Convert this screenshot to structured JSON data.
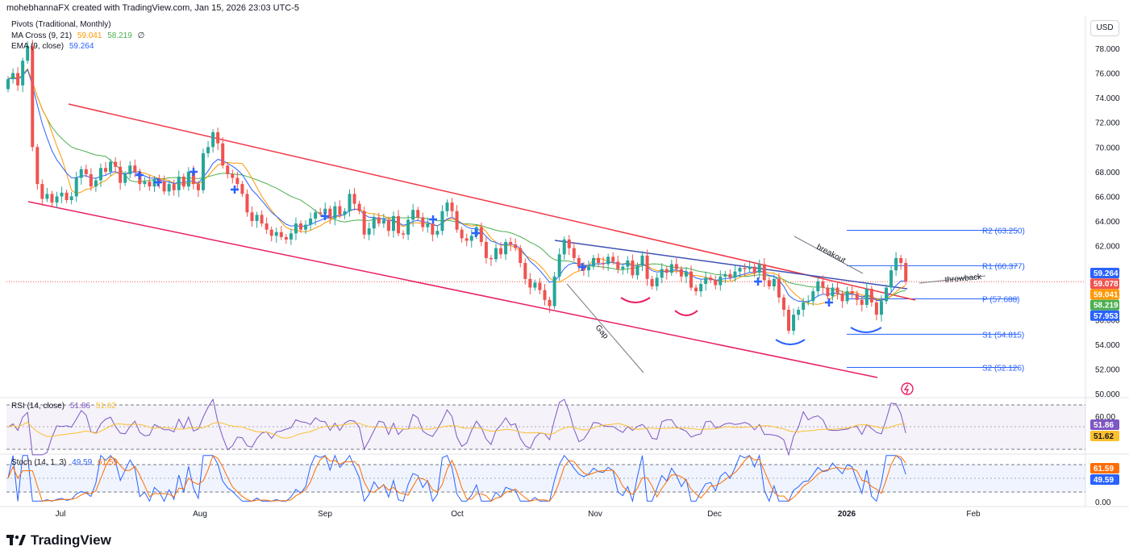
{
  "header": {
    "credit": "mohebhannaFX created with TradingView.com, Jan 15, 2026 23:03 UTC-5"
  },
  "legends": {
    "pivots": "Pivots (Traditional, Monthly)",
    "ma_cross_label": "MA Cross (9, 21)",
    "ma_cross_v1": "59.041",
    "ma_cross_v2": "58.219",
    "ma_cross_extra": "∅",
    "ema_label": "EMA (9, close)",
    "ema_value": "59.264",
    "rsi_label": "RSI (14, close)",
    "rsi_v1": "51.86",
    "rsi_v2": "51.62",
    "stoch_label": "Stoch (14, 1, 3)",
    "stoch_v1": "49.59",
    "stoch_v2": "61.59"
  },
  "currency_button": "USD",
  "footer": {
    "brand": "TradingView"
  },
  "colors": {
    "up": "#26a69a",
    "down": "#ef5350",
    "channel": "#f23645",
    "channel_lower": "#e91e63",
    "trend": "#3f51b5",
    "pivot": "#2962ff",
    "ema": "#2962ff",
    "ma_fast": "#ff9800",
    "ma_slow": "#4caf50",
    "rsi": "#7e57c2",
    "rsi_ma": "#fbc02d",
    "stoch_k": "#2962ff",
    "stoch_d": "#ff6d00",
    "cups": "#e91e63",
    "cups_blue": "#2962ff"
  },
  "chart_data": {
    "type": "candlestick",
    "title": "",
    "y_axis": {
      "ticks": [
        "78.000",
        "76.000",
        "74.000",
        "72.000",
        "70.000",
        "68.000",
        "66.000",
        "64.000",
        "62.000",
        "60.000",
        "58.000",
        "56.000",
        "54.000",
        "52.000",
        "50.000"
      ],
      "ylim": [
        50,
        78
      ]
    },
    "x_axis": {
      "ticks": [
        "Jul",
        "Aug",
        "Sep",
        "Oct",
        "Nov",
        "Dec",
        "2026",
        "Feb"
      ]
    },
    "pivots": [
      {
        "label": "R2 (63.250)",
        "value": 63.25
      },
      {
        "label": "R1 (60.377)",
        "value": 60.377
      },
      {
        "label": "P (57.688)",
        "value": 57.688
      },
      {
        "label": "S1 (54.815)",
        "value": 54.815
      },
      {
        "label": "S2 (52.126)",
        "value": 52.126
      }
    ],
    "price_labels": [
      {
        "text": "59.264",
        "value": 59.264,
        "color": "#2962ff"
      },
      {
        "text": "59.078",
        "value": 59.078,
        "color": "#ef5350"
      },
      {
        "text": "59.041",
        "value": 59.041,
        "color": "#ff9800"
      },
      {
        "text": "58.219",
        "value": 58.219,
        "color": "#4caf50"
      },
      {
        "text": "57.953",
        "value": 57.953,
        "color": "#2962ff"
      }
    ],
    "annotations": [
      {
        "text": "breakout"
      },
      {
        "text": "throwback"
      },
      {
        "text": "Gap"
      }
    ],
    "candles_close": [
      75.5,
      76,
      75,
      77,
      78.2,
      70,
      67,
      65.8,
      66.2,
      65.5,
      66,
      66.3,
      65.7,
      66,
      67.5,
      68.2,
      67.8,
      66.8,
      67.3,
      68.3,
      68,
      68.8,
      68.4,
      67.1,
      67.8,
      68.5,
      68,
      67,
      67.2,
      66.8,
      67.4,
      67.2,
      66.4,
      67,
      66.5,
      67.6,
      66.8,
      68,
      67,
      66.5,
      69.5,
      70,
      71.2,
      70.3,
      68.5,
      67.8,
      67.5,
      67,
      66.2,
      64.7,
      64,
      64.5,
      63.8,
      63.3,
      62.8,
      63.1,
      62.7,
      62.5,
      63,
      63.8,
      63.3,
      63.7,
      64.2,
      64.7,
      64.6,
      65,
      64.2,
      65.2,
      64.5,
      64.8,
      66.2,
      65.4,
      64.8,
      62.9,
      63.4,
      64.3,
      63.8,
      64.1,
      63.2,
      64.4,
      63,
      62.9,
      64.1,
      64.9,
      64.3,
      63.5,
      63.8,
      62.9,
      63.2,
      64.8,
      65.5,
      64.8,
      63.3,
      62.6,
      62.4,
      62.8,
      63.5,
      62.3,
      61,
      60.9,
      61.8,
      61.3,
      62.3,
      62.1,
      61.8,
      60.6,
      59.3,
      58.6,
      59,
      58.4,
      57.6,
      57.1,
      59.5,
      61.3,
      62.5,
      61.8,
      61,
      60.3,
      60,
      60.3,
      61,
      60.6,
      60.5,
      61.1,
      60.7,
      60.1,
      60.3,
      60.8,
      59.6,
      60.4,
      61.2,
      59.3,
      58.7,
      59.4,
      60.1,
      59.8,
      60.5,
      60.1,
      59.5,
      59.9,
      58.6,
      58.3,
      58.9,
      59.4,
      59.2,
      58.8,
      59.5,
      59.7,
      59.4,
      59.9,
      60.2,
      60.1,
      60.3,
      59.8,
      60.5,
      59.2,
      58.7,
      59.3,
      57.8,
      56.8,
      55.1,
      56.4,
      56.8,
      57.4,
      57.5,
      58.3,
      59.1,
      58.6,
      57.9,
      58.6,
      58.1,
      57.5,
      58.3,
      58.1,
      57.6,
      57.2,
      58.5,
      57.4,
      56.4,
      57.5,
      58.6,
      60,
      61,
      60.6,
      59.1
    ],
    "channel_upper": [
      {
        "x": 85,
        "y": 129
      },
      {
        "x": 1135,
        "y": 372
      }
    ],
    "channel_lower": [
      {
        "x": 35,
        "y": 250
      },
      {
        "x": 1088,
        "y": 468
      }
    ],
    "trendline": [
      {
        "x": 688,
        "y": 298
      },
      {
        "x": 1125,
        "y": 358
      }
    ],
    "rsi": {
      "ylim": [
        0,
        100
      ],
      "ticks": [
        "60.00"
      ]
    },
    "stoch": {
      "ylim": [
        0,
        100
      ],
      "ticks": [
        "0.00"
      ]
    }
  }
}
